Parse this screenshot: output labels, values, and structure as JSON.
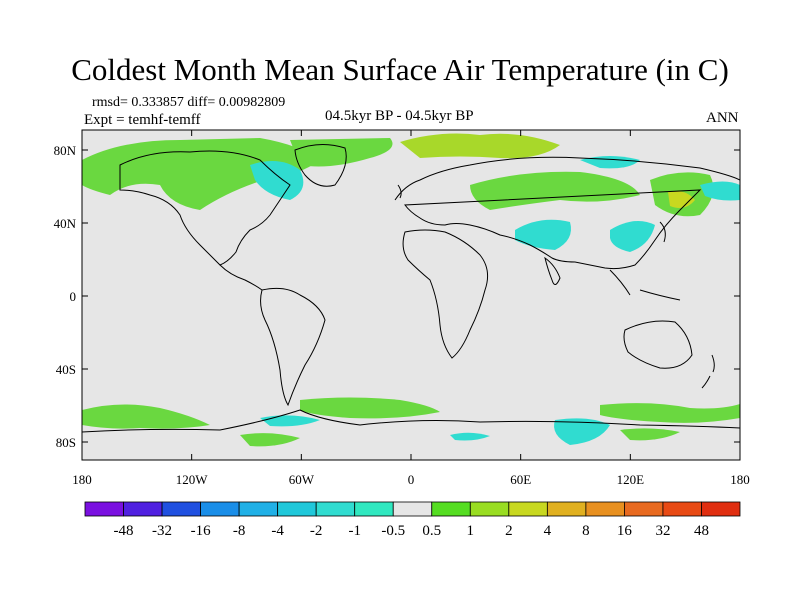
{
  "title": "Coldest Month Mean Surface Air Temperature (in C)",
  "stats": {
    "rmsd_line": "rmsd= 0.333857 diff= 0.00982809",
    "expt_line": "Expt = temhf-temff",
    "period": "04.5kyr BP - 04.5kyr BP",
    "season": "ANN"
  },
  "axes": {
    "lon_labels": [
      "180",
      "120W",
      "60W",
      "0",
      "60E",
      "120E",
      "180"
    ],
    "lat_labels": [
      "80N",
      "40N",
      "0",
      "40S",
      "80S"
    ]
  },
  "colorbar": {
    "labels": [
      "-48",
      "-32",
      "-16",
      "-8",
      "-4",
      "-2",
      "-1",
      "-0.5",
      "0.5",
      "1",
      "2",
      "4",
      "8",
      "16",
      "32",
      "48"
    ],
    "colors": [
      "#7a10e0",
      "#5020e0",
      "#2050e0",
      "#1a8ee8",
      "#20b0e6",
      "#20c8da",
      "#30dcd0",
      "#30e8c0",
      "#e6e6e6",
      "#55dd22",
      "#99dd22",
      "#c8d820",
      "#e0b020",
      "#e89020",
      "#e86a20",
      "#e84a14",
      "#e02e10"
    ]
  },
  "colors": {
    "ocean_land_bg": "#e6e6e6",
    "positive_green": "#6ad840",
    "positive_yellow": "#a8d82a",
    "negative_cyan": "#30dcd0",
    "coast": "#000000"
  }
}
